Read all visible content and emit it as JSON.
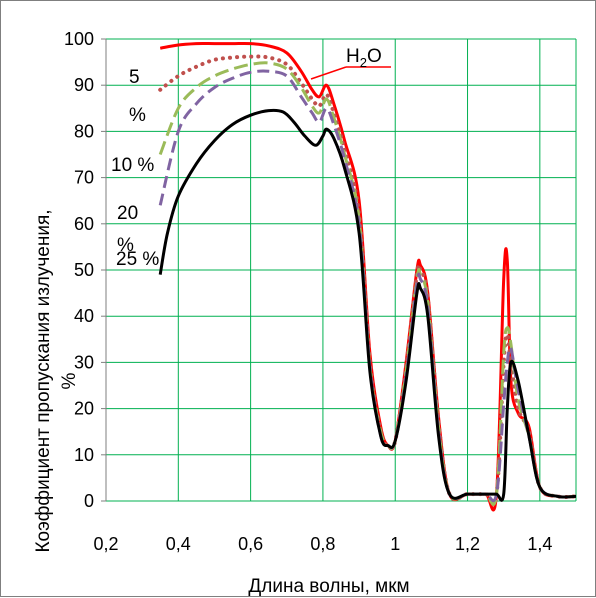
{
  "chart_data": {
    "type": "line",
    "title": "",
    "xlabel": "Длина волны, мкм",
    "ylabel": "Коэффициент пропускания излучения, %",
    "xlim": [
      0.2,
      1.5
    ],
    "ylim": [
      0,
      100
    ],
    "x_ticks": [
      "0,2",
      "0,4",
      "0,6",
      "0,8",
      "1",
      "1,2",
      "1,4"
    ],
    "y_ticks": [
      "0",
      "10",
      "20",
      "30",
      "40",
      "50",
      "60",
      "70",
      "80",
      "90",
      "100"
    ],
    "grid": true,
    "grid_color": "#00b050",
    "series": [
      {
        "name": "H2O",
        "color": "#ff0000",
        "dash": "solid",
        "x": [
          0.35,
          0.4,
          0.45,
          0.5,
          0.55,
          0.6,
          0.65,
          0.7,
          0.74,
          0.77,
          0.79,
          0.81,
          0.83,
          0.86,
          0.9,
          0.93,
          0.96,
          0.98,
          1.0,
          1.03,
          1.06,
          1.07,
          1.09,
          1.12,
          1.15,
          1.2,
          1.25,
          1.28,
          1.3,
          1.31,
          1.32,
          1.34,
          1.37,
          1.4,
          1.45,
          1.5
        ],
        "values": [
          98,
          98.7,
          99,
          99,
          99,
          99,
          98.5,
          97,
          93,
          89,
          87.5,
          90,
          86,
          78,
          65,
          32,
          16,
          12,
          13,
          30,
          50,
          51,
          45,
          18,
          1.5,
          1.5,
          1.5,
          1.5,
          48,
          52,
          26,
          19,
          16,
          3,
          1,
          1
        ]
      },
      {
        "name": "5 %",
        "color": "#c0504d",
        "dash": "dotted",
        "x": [
          0.35,
          0.4,
          0.45,
          0.5,
          0.55,
          0.6,
          0.65,
          0.7,
          0.74,
          0.77,
          0.79,
          0.81,
          0.83,
          0.86,
          0.9,
          0.93,
          0.96,
          0.98,
          1.0,
          1.03,
          1.06,
          1.07,
          1.09,
          1.12,
          1.15,
          1.2,
          1.25,
          1.28,
          1.3,
          1.31,
          1.32,
          1.34,
          1.37,
          1.4,
          1.45,
          1.5
        ],
        "values": [
          89,
          92,
          94,
          95.5,
          96,
          96.2,
          96,
          94.5,
          90.5,
          87,
          85.5,
          88,
          84,
          76,
          62,
          30,
          15,
          12,
          13,
          29,
          49,
          50,
          44,
          17,
          1.5,
          1.5,
          1.5,
          1.5,
          30,
          36,
          30,
          20,
          15,
          3,
          1,
          1
        ]
      },
      {
        "name": "10 %",
        "color": "#9bbb59",
        "dash": "dashed",
        "x": [
          0.35,
          0.4,
          0.45,
          0.5,
          0.55,
          0.6,
          0.65,
          0.7,
          0.74,
          0.77,
          0.79,
          0.81,
          0.83,
          0.86,
          0.9,
          0.93,
          0.96,
          0.98,
          1.0,
          1.03,
          1.06,
          1.07,
          1.09,
          1.12,
          1.15,
          1.2,
          1.25,
          1.28,
          1.3,
          1.31,
          1.32,
          1.34,
          1.37,
          1.4,
          1.45,
          1.5
        ],
        "values": [
          75,
          85,
          89.5,
          92,
          93.5,
          94.5,
          94.8,
          93.5,
          89.5,
          85.5,
          84,
          87,
          83,
          75,
          61,
          29,
          15,
          12,
          13,
          28,
          48,
          49,
          43,
          16,
          1.5,
          1.5,
          1.5,
          1.5,
          32,
          37.5,
          34,
          22,
          14,
          3,
          1,
          1
        ]
      },
      {
        "name": "20 %",
        "color": "#8064a2",
        "dash": "dashed",
        "x": [
          0.35,
          0.4,
          0.45,
          0.5,
          0.55,
          0.6,
          0.65,
          0.7,
          0.74,
          0.77,
          0.79,
          0.81,
          0.83,
          0.86,
          0.9,
          0.93,
          0.96,
          0.98,
          1.0,
          1.03,
          1.06,
          1.07,
          1.09,
          1.12,
          1.15,
          1.2,
          1.25,
          1.28,
          1.3,
          1.31,
          1.32,
          1.34,
          1.37,
          1.4,
          1.45,
          1.5
        ],
        "values": [
          64,
          80,
          86,
          89.5,
          91.5,
          92.8,
          93,
          92,
          87.5,
          84,
          82,
          85,
          81.5,
          74,
          60,
          29,
          14,
          12,
          13,
          27,
          47,
          48,
          42,
          15,
          1.5,
          1.5,
          1.5,
          1.5,
          21,
          30,
          33,
          24,
          14,
          3,
          1,
          1
        ]
      },
      {
        "name": "25 %",
        "color": "#000000",
        "dash": "solid",
        "x": [
          0.35,
          0.37,
          0.4,
          0.45,
          0.5,
          0.55,
          0.6,
          0.65,
          0.69,
          0.72,
          0.75,
          0.78,
          0.8,
          0.81,
          0.83,
          0.86,
          0.9,
          0.93,
          0.96,
          0.98,
          1.0,
          1.03,
          1.06,
          1.07,
          1.09,
          1.12,
          1.15,
          1.2,
          1.25,
          1.28,
          1.3,
          1.31,
          1.32,
          1.34,
          1.37,
          1.4,
          1.45,
          1.5
        ],
        "values": [
          49,
          58,
          66,
          73,
          78,
          81.5,
          83.5,
          84.5,
          84.2,
          82,
          79,
          77,
          79,
          80.5,
          78.5,
          72,
          58,
          28,
          14,
          12,
          13,
          26,
          45,
          46,
          40,
          14,
          1.5,
          1.5,
          1.5,
          1.5,
          1.5,
          20,
          30,
          26,
          14,
          3,
          1,
          1
        ]
      }
    ],
    "annotations": {
      "h2o_main": "H",
      "h2o_sub": "2",
      "h2o_tail": "O",
      "pct5_a": "5",
      "pct5_b": "%",
      "pct10": "10 %",
      "pct20_a": "20",
      "pct20_b": "%",
      "pct25": "25 %"
    }
  }
}
